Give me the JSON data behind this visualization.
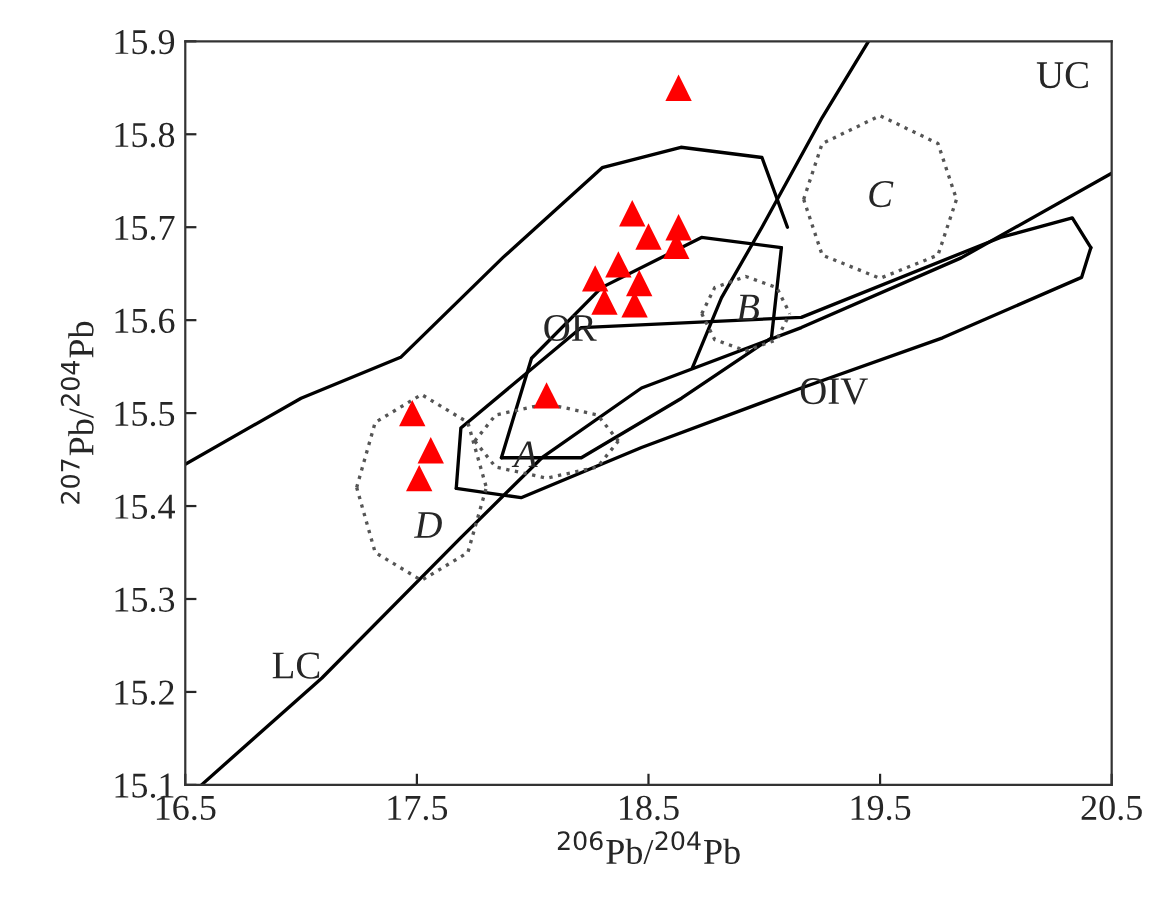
{
  "chart_data": {
    "type": "scatter",
    "xlabel": "$^{206}$Pb/$^{204}$Pb",
    "ylabel": "$^{207}$Pb/$^{204}$Pb",
    "xlim": [
      16.5,
      20.5
    ],
    "ylim": [
      15.1,
      15.9
    ],
    "xticks": [
      16.5,
      17.5,
      18.5,
      19.5,
      20.5
    ],
    "yticks": [
      15.1,
      15.2,
      15.3,
      15.4,
      15.5,
      15.6,
      15.7,
      15.8,
      15.9
    ],
    "grid": false,
    "legend": false,
    "series": [
      {
        "type": "line",
        "color": "#000000",
        "line_style": "solid",
        "x": [
          16.57,
          17.09,
          17.69,
          18.04,
          18.47,
          19.16,
          19.85,
          20.5
        ],
        "values": [
          15.1,
          15.215,
          15.366,
          15.452,
          15.527,
          15.592,
          15.667,
          15.758
        ]
      },
      {
        "type": "line",
        "color": "#000000",
        "line_style": "solid",
        "x": [
          16.5,
          17.0,
          17.43,
          17.87,
          18.3,
          18.64,
          18.99,
          19.1
        ],
        "values": [
          15.445,
          15.516,
          15.56,
          15.667,
          15.764,
          15.786,
          15.775,
          15.7
        ]
      },
      {
        "type": "line",
        "color": "#000000",
        "line_style": "solid",
        "x": [
          18.69,
          18.815,
          18.99,
          19.25,
          19.45
        ],
        "values": [
          15.549,
          15.624,
          15.7,
          15.818,
          15.9
        ]
      },
      {
        "type": "line",
        "color": "#000000",
        "line_style": "solid",
        "x": [
          17.865,
          17.995,
          18.297,
          18.729,
          19.074
        ],
        "values": [
          15.452,
          15.559,
          15.635,
          15.689,
          15.678
        ]
      },
      {
        "type": "line",
        "color": "#000000",
        "line_style": "solid",
        "x": [
          17.865,
          18.21,
          18.643,
          19.031,
          19.074
        ],
        "values": [
          15.452,
          15.452,
          15.516,
          15.581,
          15.678
        ]
      },
      {
        "type": "line",
        "color": "#000000",
        "line_style": "solid",
        "x": [
          17.67,
          17.69,
          18.21,
          19.16,
          20.02,
          20.33,
          20.41
        ],
        "values": [
          15.419,
          15.484,
          15.592,
          15.603,
          15.689,
          15.71,
          15.678
        ]
      },
      {
        "type": "line",
        "color": "#000000",
        "line_style": "solid",
        "x": [
          17.67,
          17.95,
          18.47,
          19.16,
          19.77,
          20.37,
          20.41
        ],
        "values": [
          15.419,
          15.409,
          15.463,
          15.527,
          15.581,
          15.646,
          15.678
        ]
      },
      {
        "type": "line",
        "color": "#555555",
        "line_style": "dotted",
        "x": [
          19.17,
          19.25,
          19.5,
          19.75,
          19.83
        ],
        "values": [
          15.73,
          15.79,
          15.82,
          15.79,
          15.73
        ]
      },
      {
        "type": "line",
        "color": "#555555",
        "line_style": "dotted",
        "x": [
          19.17,
          19.25,
          19.5,
          19.75,
          19.83
        ],
        "values": [
          15.73,
          15.67,
          15.645,
          15.67,
          15.73
        ]
      },
      {
        "type": "line",
        "color": "#555555",
        "line_style": "dotted",
        "x": [
          18.73,
          18.786,
          18.92,
          19.054,
          19.11
        ],
        "values": [
          15.607,
          15.635,
          15.647,
          15.635,
          15.607
        ]
      },
      {
        "type": "line",
        "color": "#555555",
        "line_style": "dotted",
        "x": [
          18.73,
          18.786,
          18.92,
          19.054,
          19.11
        ],
        "values": [
          15.607,
          15.579,
          15.567,
          15.579,
          15.607
        ]
      },
      {
        "type": "line",
        "color": "#555555",
        "line_style": "dotted",
        "x": [
          17.75,
          17.84,
          18.06,
          18.28,
          18.37
        ],
        "values": [
          15.47,
          15.498,
          15.51,
          15.498,
          15.47
        ]
      },
      {
        "type": "line",
        "color": "#555555",
        "line_style": "dotted",
        "x": [
          17.75,
          17.84,
          18.06,
          18.28,
          18.37
        ],
        "values": [
          15.47,
          15.442,
          15.43,
          15.442,
          15.47
        ]
      },
      {
        "type": "line",
        "color": "#555555",
        "line_style": "dotted",
        "x": [
          17.24,
          17.32,
          17.52,
          17.72,
          17.8
        ],
        "values": [
          15.42,
          15.49,
          15.52,
          15.49,
          15.42
        ]
      },
      {
        "type": "line",
        "color": "#555555",
        "line_style": "dotted",
        "x": [
          17.24,
          17.32,
          17.52,
          17.72,
          17.8
        ],
        "values": [
          15.42,
          15.35,
          15.32,
          15.35,
          15.42
        ]
      },
      {
        "color": "#ff0000",
        "marker": "triangle",
        "x": [
          18.63,
          18.43,
          18.5,
          18.63,
          18.62,
          18.37,
          18.27,
          18.46,
          18.31,
          18.44,
          18.06,
          17.48,
          17.56,
          17.51
        ],
        "values": [
          15.85,
          15.715,
          15.69,
          15.7,
          15.68,
          15.66,
          15.645,
          15.64,
          15.62,
          15.617,
          15.519,
          15.5,
          15.46,
          15.43
        ]
      }
    ],
    "annotations": [
      "UC",
      "C",
      "OR",
      "B",
      "OIV",
      "A",
      "D",
      "LC"
    ]
  }
}
